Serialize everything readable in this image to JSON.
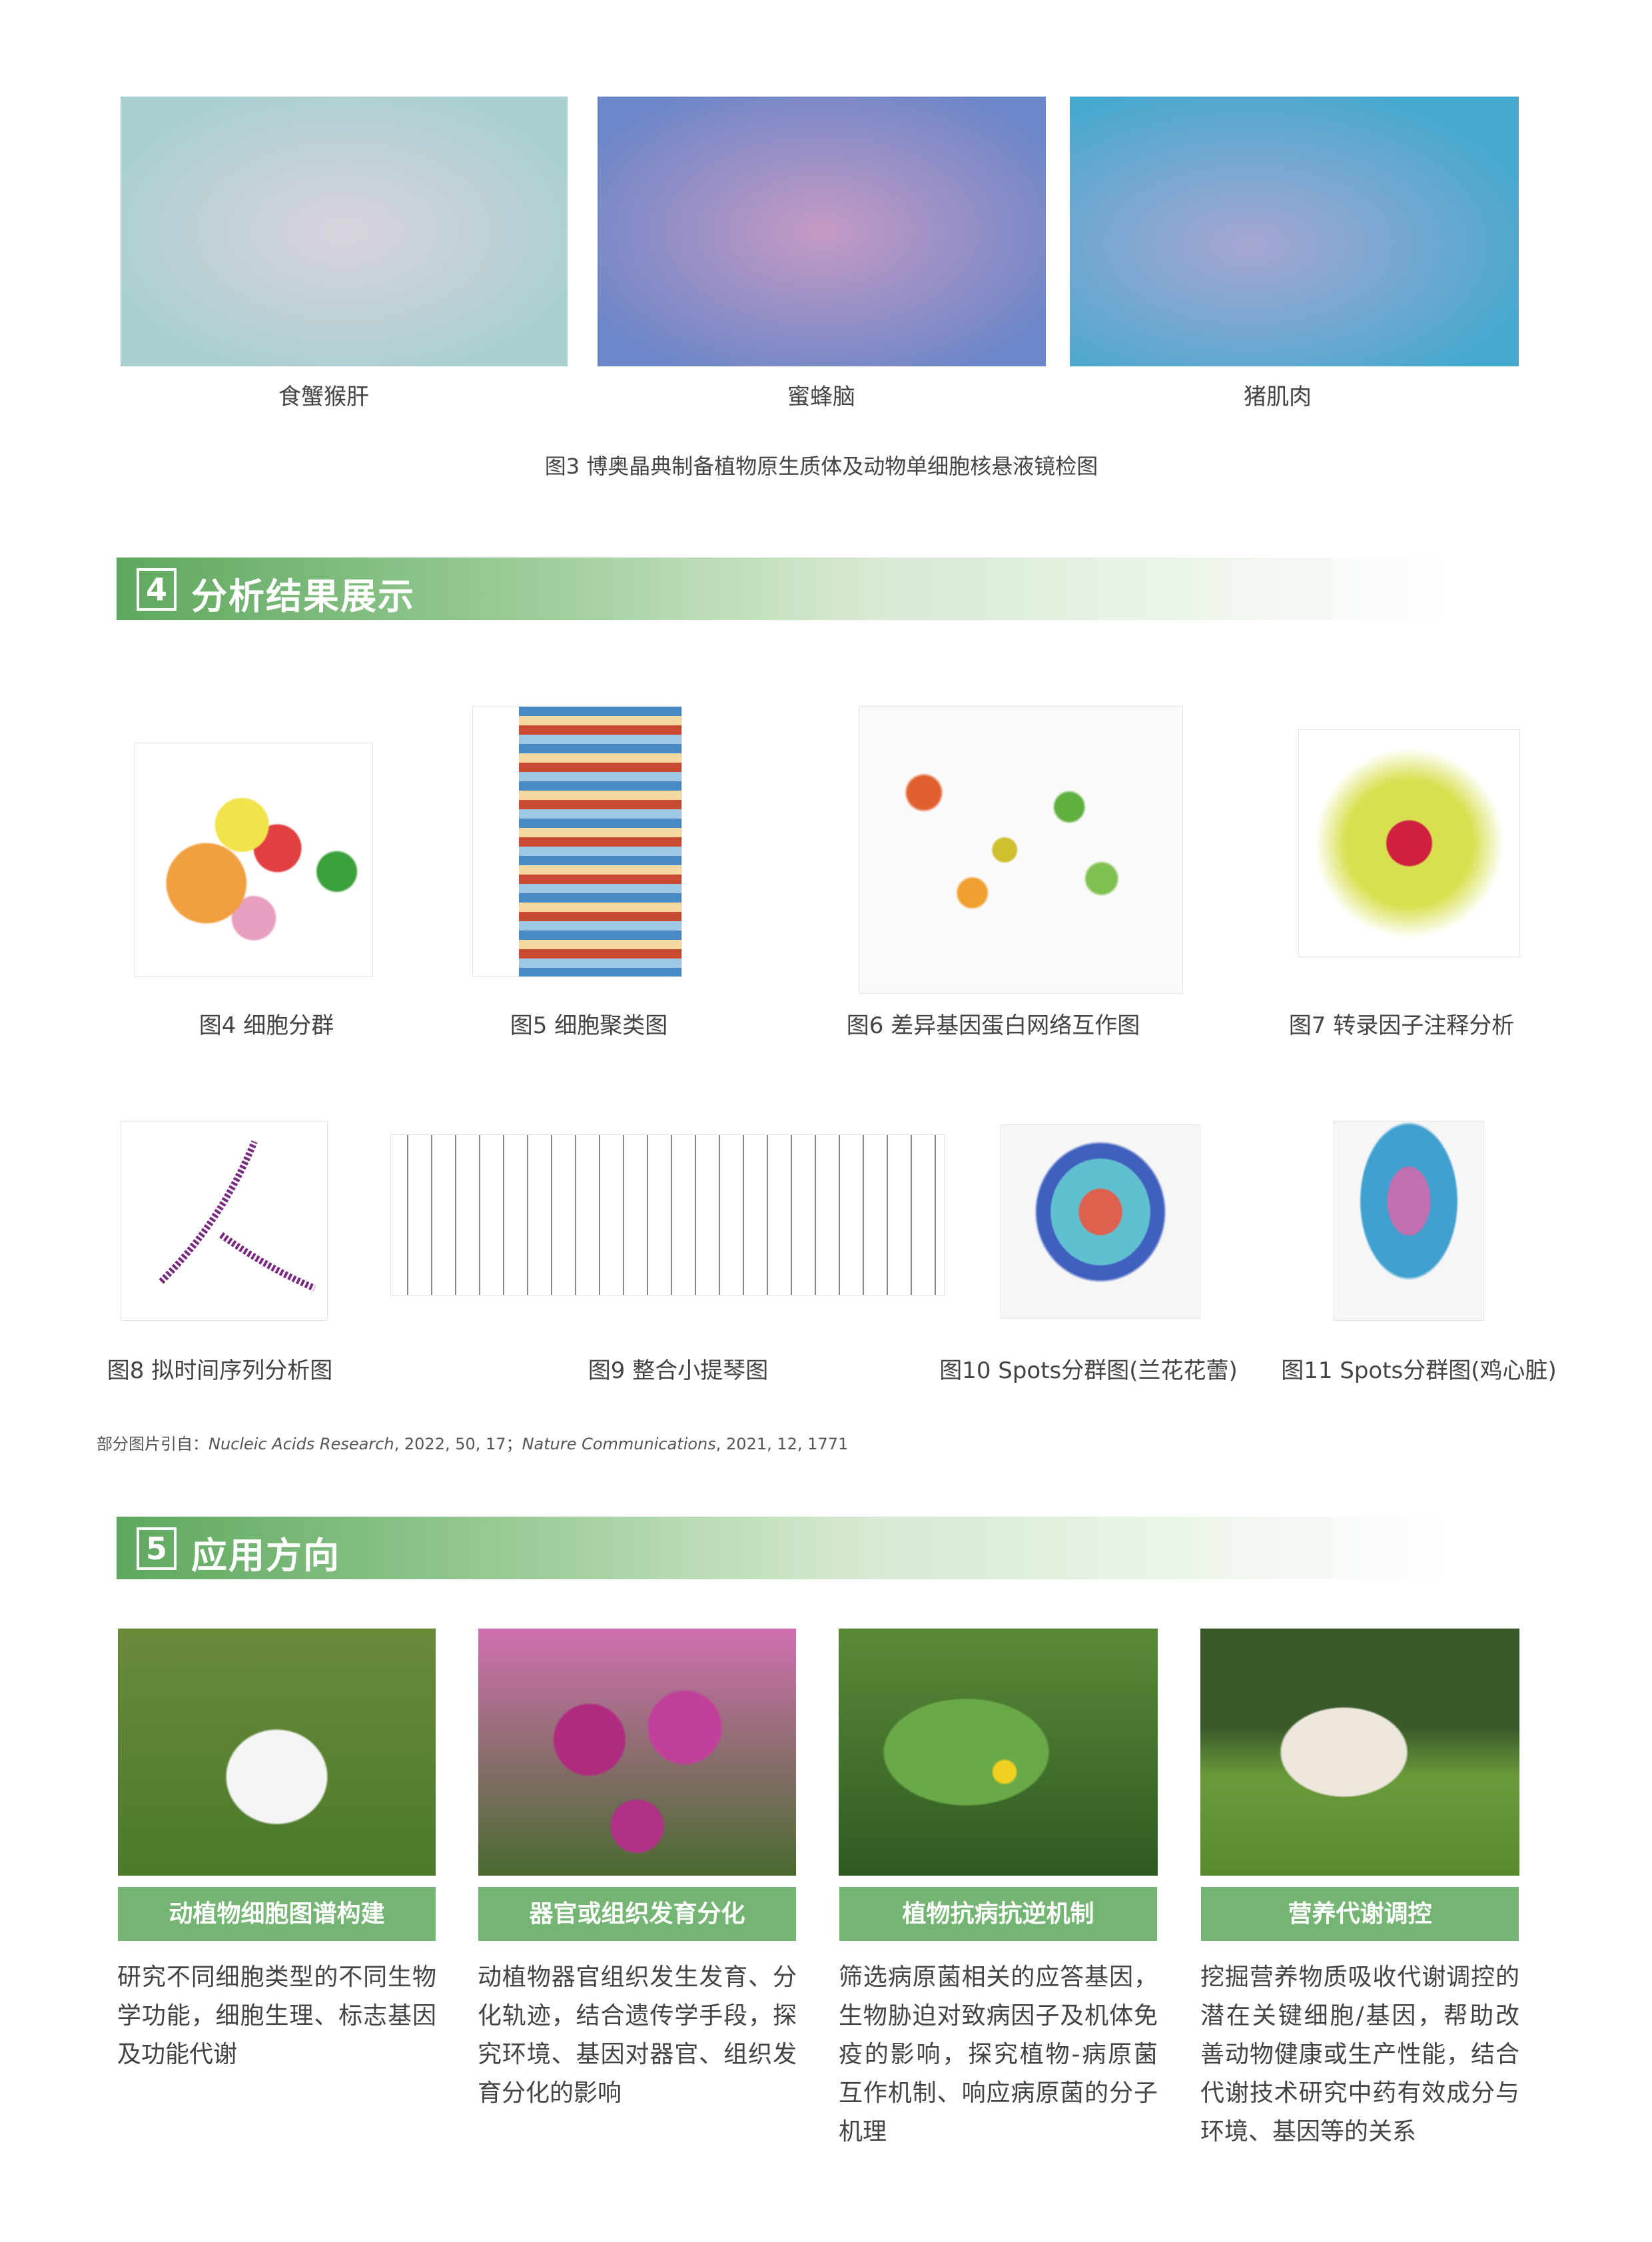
{
  "micrographs": [
    {
      "caption": "食蟹猴肝"
    },
    {
      "caption": "蜜蜂脑"
    },
    {
      "caption": "猪肌肉"
    }
  ],
  "figure3_caption": "图3 博奥晶典制备植物原生质体及动物单细胞核悬液镜检图",
  "section4": {
    "number": "4",
    "title": "分析结果展示"
  },
  "figures": [
    {
      "caption": "图4 细胞分群"
    },
    {
      "caption": "图5 细胞聚类图"
    },
    {
      "caption": "图6 差异基因蛋白网络互作图"
    },
    {
      "caption": "图7 转录因子注释分析"
    },
    {
      "caption": "图8 拟时间序列分析图"
    },
    {
      "caption": "图9 整合小提琴图"
    },
    {
      "caption": "图10 Spots分群图(兰花花蕾)"
    },
    {
      "caption": "图11 Spots分群图(鸡心脏)"
    }
  ],
  "citation": {
    "prefix": "部分图片引自：",
    "source1": "Nucleic Acids Research",
    "detail1": ", 2022, 50, 17；",
    "source2": "Nature Communications",
    "detail2": ", 2021, 12, 1771"
  },
  "section5": {
    "number": "5",
    "title": "应用方向"
  },
  "applications": [
    {
      "title": "动植物细胞图谱构建",
      "description": "研究不同细胞类型的不同生物学功能，细胞生理、标志基因及功能代谢"
    },
    {
      "title": "器官或组织发育分化",
      "description": "动植物器官组织发生发育、分化轨迹，结合遗传学手段，探究环境、基因对器官、组织发育分化的影响"
    },
    {
      "title": "植物抗病抗逆机制",
      "description": "筛选病原菌相关的应答基因，生物胁迫对致病因子及机体免疫的影响，探究植物-病原菌互作机制、响应病原菌的分子机理"
    },
    {
      "title": "营养代谢调控",
      "description": "挖掘营养物质吸收代谢调控的潜在关键细胞/基因，帮助改善动物健康或生产性能，结合代谢技术研究中药有效成分与环境、基因等的关系"
    }
  ]
}
